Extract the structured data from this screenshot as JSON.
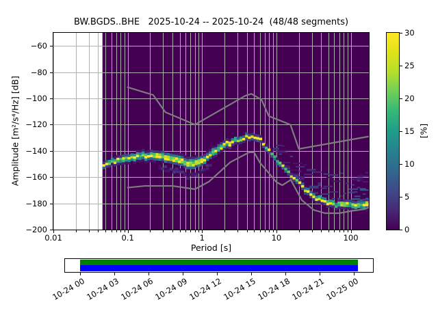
{
  "figure": {
    "title": "BW.BGDS..BHE   2025-10-24 -- 2025-10-24  (48/48 segments)"
  },
  "chart_data": {
    "type": "heatmap",
    "title": "BW.BGDS..BHE   2025-10-24 -- 2025-10-24  (48/48 segments)",
    "xlabel": "Period [s]",
    "ylabel": "Amplitude [m²/s⁴/Hz] [dB]",
    "xscale": "log",
    "xlim": [
      0.01,
      175
    ],
    "ylim": [
      -200,
      -50
    ],
    "grid": true,
    "data_period_start": 0.0457,
    "xticks": {
      "labels": [
        "0.01",
        "0.1",
        "1",
        "10",
        "100"
      ],
      "values": [
        0.01,
        0.1,
        1,
        10,
        100
      ]
    },
    "yticks": {
      "labels": [
        "−60",
        "−80",
        "−100",
        "−120",
        "−140",
        "−160",
        "−180",
        "−200"
      ],
      "values": [
        -60,
        -80,
        -100,
        -120,
        -140,
        -160,
        -180,
        -200
      ]
    },
    "histogram": {
      "units": "probability percent per 1-dB bin, viridis colormap, max of scale 30%",
      "mode_curve": {
        "periods": [
          0.046,
          0.055,
          0.07,
          0.09,
          0.12,
          0.17,
          0.25,
          0.35,
          0.5,
          0.65,
          0.8,
          1.0,
          1.4,
          2.0,
          2.8,
          4.0,
          5.0,
          6.0,
          7.3,
          8.5,
          10,
          12,
          14,
          17,
          21,
          26,
          32,
          40,
          50,
          65,
          85,
          110,
          140,
          171
        ],
        "db": [
          -151,
          -149,
          -147.5,
          -146.3,
          -145,
          -143.8,
          -143.8,
          -145.2,
          -147.5,
          -149.3,
          -149.8,
          -147.5,
          -141.5,
          -136,
          -132,
          -129.5,
          -129,
          -131,
          -137.5,
          -142,
          -147.5,
          -152,
          -156,
          -160.5,
          -165.5,
          -171,
          -175.5,
          -177.5,
          -179.5,
          -181,
          -181.5,
          -181.5,
          -181,
          -180
        ]
      },
      "spread_halfwidth_db": {
        "periods": [
          0.046,
          0.07,
          0.1,
          0.2,
          0.4,
          0.7,
          1.0,
          2,
          4,
          6,
          8,
          12,
          20,
          32,
          50,
          85,
          120,
          171
        ],
        "db": [
          1.5,
          2.0,
          2.2,
          2.5,
          2.8,
          3.0,
          2.6,
          2.0,
          1.6,
          1.5,
          1.4,
          1.4,
          1.6,
          1.7,
          1.8,
          2.0,
          2.2,
          2.6
        ]
      },
      "tail_scatter": {
        "period_min": 9,
        "offset_min_db": 3,
        "offset_max_periods": [
          9,
          30,
          171
        ],
        "offset_max_db": [
          12,
          20,
          23
        ],
        "percent_range": [
          1,
          8
        ]
      },
      "period_step_octaves": 0.125,
      "db_cell_height": 1.9
    },
    "noise_models": {
      "color": "#7d7d7d",
      "nhnm": {
        "periods": [
          0.1,
          0.22,
          0.32,
          0.8,
          3.8,
          4.6,
          6.3,
          7.9,
          15.4,
          20.0,
          171
        ],
        "db": [
          -91.5,
          -97.4,
          -110.5,
          -120.0,
          -98.0,
          -96.5,
          -101.0,
          -113.5,
          -120.0,
          -138.5,
          -129.1
        ]
      },
      "nlnm": {
        "periods": [
          0.1,
          0.17,
          0.4,
          0.8,
          1.24,
          2.4,
          4.3,
          5.0,
          6.0,
          10.0,
          12.0,
          15.6,
          21.9,
          31.6,
          45.0,
          70.0,
          101.0,
          154.0,
          171.0
        ],
        "db": [
          -168.0,
          -166.7,
          -166.7,
          -169.2,
          -163.4,
          -148.6,
          -141.1,
          -141.1,
          -149.0,
          -163.8,
          -166.2,
          -162.1,
          -177.5,
          -185.0,
          -187.5,
          -187.5,
          -185.8,
          -184.4,
          -183.2
        ]
      }
    },
    "colorbar": {
      "label": "[%]",
      "min": 0,
      "max": 30,
      "tick_labels": [
        "0",
        "5",
        "10",
        "15",
        "20",
        "25",
        "30"
      ],
      "tick_values": [
        0,
        5,
        10,
        15,
        20,
        25,
        30
      ],
      "colormap": "viridis",
      "stops": [
        [
          0,
          "#440154"
        ],
        [
          0.1,
          "#482878"
        ],
        [
          0.2,
          "#3e4a89"
        ],
        [
          0.3,
          "#31688e"
        ],
        [
          0.4,
          "#26828e"
        ],
        [
          0.5,
          "#1f9e89"
        ],
        [
          0.6,
          "#35b779"
        ],
        [
          0.7,
          "#6ece58"
        ],
        [
          0.8,
          "#b5de2b"
        ],
        [
          0.9,
          "#dfe318"
        ],
        [
          1,
          "#fde725"
        ]
      ]
    },
    "colors": {
      "background_zero_percent": "#440154",
      "grid": "#b0b0b0",
      "figure_background": "#ffffff"
    },
    "timeline": {
      "tick_labels": [
        "10-24 00",
        "10-24 03",
        "10-24 06",
        "10-24 09",
        "10-24 12",
        "10-24 15",
        "10-24 18",
        "10-24 21",
        "10-25 00"
      ],
      "bars": [
        {
          "name": "coverage-top",
          "color": "#008000"
        },
        {
          "name": "coverage-bottom",
          "color": "#0000ff"
        }
      ]
    }
  }
}
